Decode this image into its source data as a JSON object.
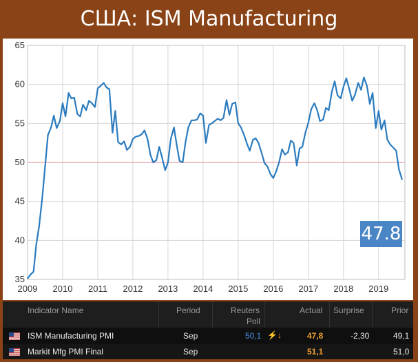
{
  "title": "США: ISM Manufacturing",
  "badge_value": "47.8",
  "chart_data": {
    "type": "line",
    "title": "США: ISM Manufacturing",
    "xlim": [
      2009.0,
      2019.75
    ],
    "ylim": [
      35,
      65
    ],
    "yticks": [
      35,
      40,
      45,
      50,
      55,
      60,
      65
    ],
    "xticks": [
      "2009",
      "2010",
      "2011",
      "2012",
      "2013",
      "2014",
      "2015",
      "2016",
      "2017",
      "2018",
      "2019"
    ],
    "reference_line": 50,
    "grid": "vertical and horizontal",
    "series": [
      {
        "color": "#2a7bbf",
        "x": [
          2009.0,
          2009.08,
          2009.17,
          2009.25,
          2009.33,
          2009.42,
          2009.5,
          2009.58,
          2009.67,
          2009.75,
          2009.83,
          2009.92,
          2010.0,
          2010.08,
          2010.17,
          2010.25,
          2010.33,
          2010.42,
          2010.5,
          2010.58,
          2010.67,
          2010.75,
          2010.83,
          2010.92,
          2011.0,
          2011.08,
          2011.17,
          2011.25,
          2011.33,
          2011.42,
          2011.5,
          2011.58,
          2011.67,
          2011.75,
          2011.83,
          2011.92,
          2012.0,
          2012.08,
          2012.17,
          2012.25,
          2012.33,
          2012.42,
          2012.5,
          2012.58,
          2012.67,
          2012.75,
          2012.83,
          2012.92,
          2013.0,
          2013.08,
          2013.17,
          2013.25,
          2013.33,
          2013.42,
          2013.5,
          2013.58,
          2013.67,
          2013.75,
          2013.83,
          2013.92,
          2014.0,
          2014.08,
          2014.17,
          2014.25,
          2014.33,
          2014.42,
          2014.5,
          2014.58,
          2014.67,
          2014.75,
          2014.83,
          2014.92,
          2015.0,
          2015.08,
          2015.17,
          2015.25,
          2015.33,
          2015.42,
          2015.5,
          2015.58,
          2015.67,
          2015.75,
          2015.83,
          2015.92,
          2016.0,
          2016.08,
          2016.17,
          2016.25,
          2016.33,
          2016.42,
          2016.5,
          2016.58,
          2016.67,
          2016.75,
          2016.83,
          2016.92,
          2017.0,
          2017.08,
          2017.17,
          2017.25,
          2017.33,
          2017.42,
          2017.5,
          2017.58,
          2017.67,
          2017.75,
          2017.83,
          2017.92,
          2018.0,
          2018.08,
          2018.17,
          2018.25,
          2018.33,
          2018.42,
          2018.5,
          2018.58,
          2018.67,
          2018.75,
          2018.83,
          2018.92,
          2019.0,
          2019.08,
          2019.17,
          2019.25,
          2019.33,
          2019.42,
          2019.5,
          2019.58,
          2019.67
        ],
        "values": [
          35.1,
          35.6,
          36.0,
          39.5,
          41.8,
          45.5,
          49.5,
          53.5,
          54.5,
          56.0,
          54.4,
          55.3,
          57.6,
          55.9,
          58.9,
          58.2,
          58.3,
          56.2,
          55.9,
          57.4,
          56.7,
          57.9,
          57.6,
          57.1,
          59.5,
          59.8,
          60.2,
          59.6,
          59.4,
          53.8,
          56.6,
          52.6,
          52.3,
          52.7,
          51.6,
          52.0,
          53.0,
          53.3,
          53.4,
          53.6,
          54.1,
          53.0,
          51.0,
          50.0,
          50.3,
          52.0,
          50.7,
          49.0,
          50.0,
          53.0,
          54.5,
          52.2,
          50.2,
          50.0,
          52.6,
          54.5,
          55.4,
          55.4,
          55.5,
          56.3,
          56.0,
          52.5,
          54.8,
          55.0,
          55.3,
          55.6,
          55.4,
          55.7,
          58.0,
          56.1,
          57.5,
          57.7,
          55.0,
          54.5,
          53.5,
          52.4,
          51.5,
          52.9,
          53.1,
          52.5,
          51.2,
          49.9,
          49.5,
          48.5,
          48.0,
          48.8,
          50.1,
          51.7,
          51.0,
          51.3,
          52.8,
          52.5,
          49.6,
          51.8,
          52.0,
          53.9,
          55.1,
          56.8,
          57.6,
          56.7,
          55.3,
          55.5,
          57.0,
          56.7,
          59.1,
          60.4,
          58.6,
          58.2,
          59.7,
          60.8,
          59.3,
          57.9,
          58.7,
          60.2,
          59.3,
          60.9,
          59.8,
          57.5,
          58.9,
          54.4,
          56.6,
          54.2,
          55.4,
          52.9,
          52.3,
          51.9,
          51.5,
          49.1,
          47.8
        ]
      }
    ]
  },
  "table": {
    "headers": {
      "indicator": "Indicator Name",
      "period": "Period",
      "poll_line1": "Reuters",
      "poll_line2": "Poll",
      "actual": "Actual",
      "surprise": "Surprise",
      "prior": "Prior"
    },
    "rows": [
      {
        "indicator": "ISM Manufacturing PMI",
        "period": "Sep",
        "poll": "50,1",
        "arrow": "⚡↓",
        "actual": "47,8",
        "surprise": "-2,30",
        "prior": "49,1"
      },
      {
        "indicator": "Markit Mfg PMI Final",
        "period": "Sep",
        "poll": "",
        "arrow": "",
        "actual": "51,1",
        "surprise": "",
        "prior": "51,0"
      }
    ]
  }
}
